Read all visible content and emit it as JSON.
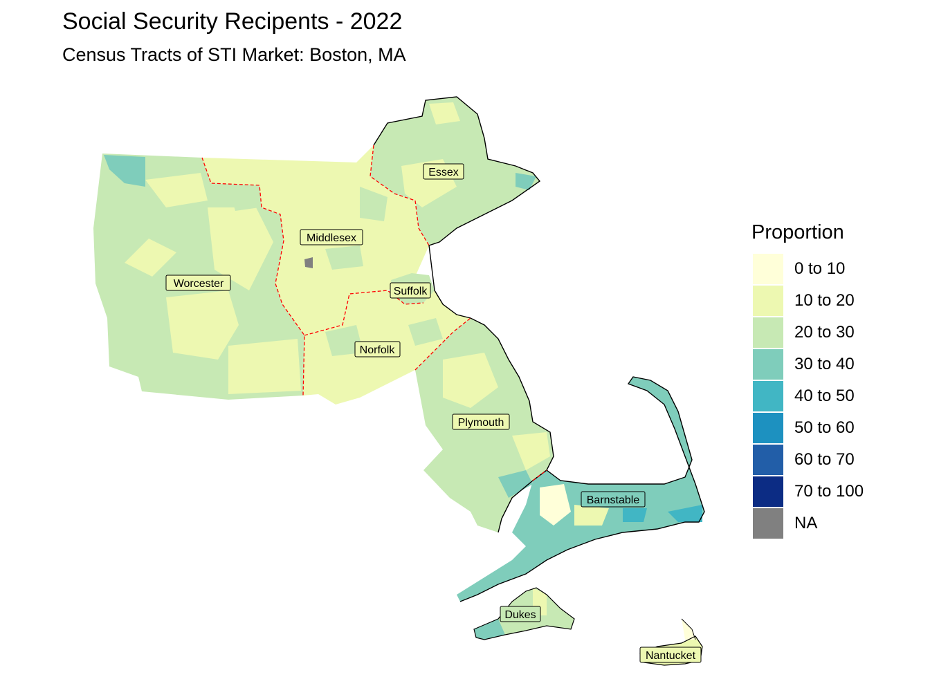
{
  "title": "Social Security Recipents - 2022",
  "subtitle": "Census Tracts of STI Market: Boston, MA",
  "legend": {
    "title": "Proportion",
    "items": [
      {
        "label": "0 to 10",
        "color": "#FFFFD9"
      },
      {
        "label": "10 to 20",
        "color": "#EDF8B1"
      },
      {
        "label": "20 to 30",
        "color": "#C7E9B4"
      },
      {
        "label": "30 to 40",
        "color": "#7FCDBB"
      },
      {
        "label": "40 to 50",
        "color": "#41B6C4"
      },
      {
        "label": "50 to 60",
        "color": "#1D91C0"
      },
      {
        "label": "60 to 70",
        "color": "#225EA8"
      },
      {
        "label": "70 to 100",
        "color": "#0C2C84"
      },
      {
        "label": "NA",
        "color": "#808080"
      }
    ]
  },
  "counties": {
    "essex": "Essex",
    "middlesex": "Middlesex",
    "worcester": "Worcester",
    "suffolk": "Suffolk",
    "norfolk": "Norfolk",
    "plymouth": "Plymouth",
    "barnstable": "Barnstable",
    "dukes": "Dukes",
    "nantucket": "Nantucket"
  },
  "colors": {
    "county_boundary": "#FF0000",
    "coastline": "#000000"
  }
}
